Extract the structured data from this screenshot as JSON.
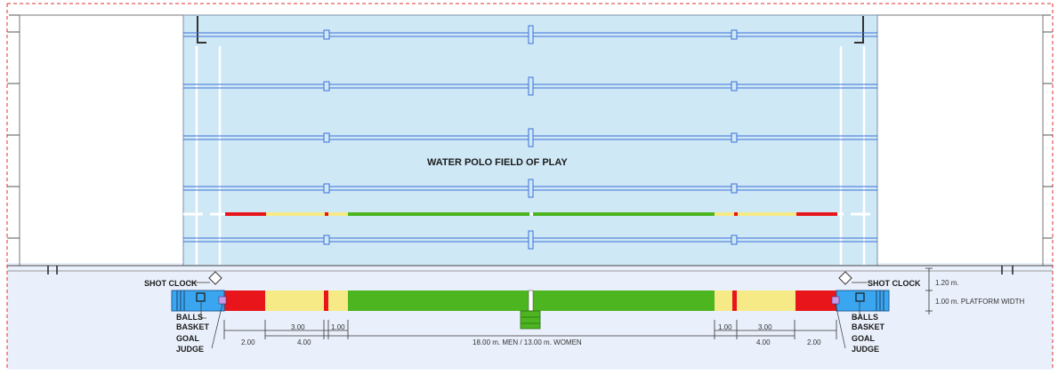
{
  "field_title": "WATER POLO FIELD OF PLAY",
  "labels": {
    "shot_clock_left": "SHOT CLOCK",
    "shot_clock_right": "SHOT CLOCK",
    "balls_left": "BALLS",
    "basket_left": "BASKET",
    "goal_left": "GOAL",
    "judge_left": "JUDGE",
    "balls_right": "BALLS",
    "basket_right": "BASKET",
    "goal_right": "GOAL",
    "judge_right": "JUDGE"
  },
  "dimensions": {
    "d200_left": "2.00",
    "d400_left": "4.00",
    "d300_left": "3.00",
    "d100_left": "1.00",
    "field_length": "18.00 m. MEN  / 13.00 m. WOMEN",
    "d100_right": "1.00",
    "d300_right": "3.00",
    "d400_right": "4.00",
    "d200_right": "2.00",
    "height_120": "1.20 m.",
    "platform_width": "1.00 m. PLATFORM WIDTH"
  },
  "zone_colors": {
    "red": "#e8151b",
    "yellow": "#f6ea86",
    "green": "#4cb51f",
    "water": "#cfe8f6",
    "lane_rope": "#3b6fd6",
    "platform": "#eaf0fb",
    "goal_blue": "#3aa6f0"
  }
}
